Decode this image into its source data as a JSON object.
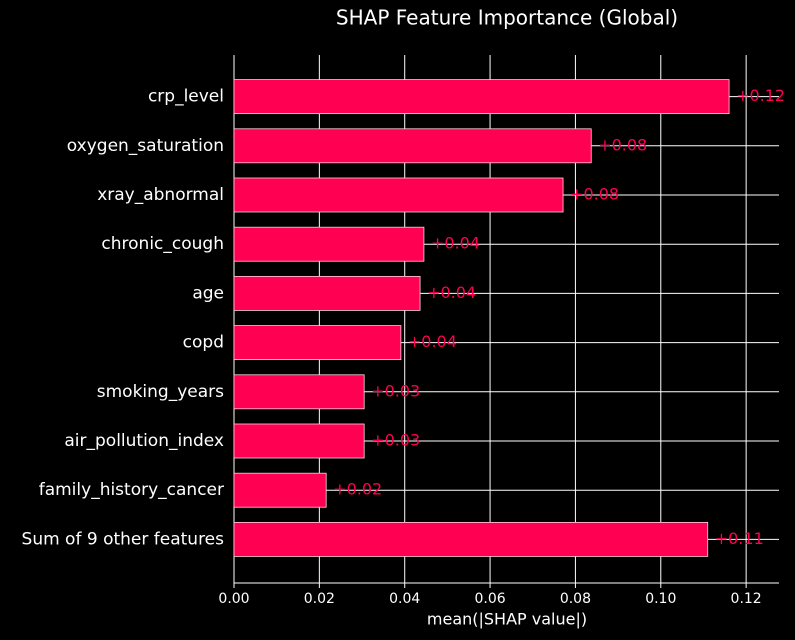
{
  "chart_data": {
    "type": "barh",
    "title": "SHAP Feature Importance (Global)",
    "x_label": "mean(|SHAP value|)",
    "categories": [
      "crp_level",
      "oxygen_saturation",
      "xray_abnormal",
      "chronic_cough",
      "age",
      "copd",
      "smoking_years",
      "air_pollution_index",
      "family_history_cancer",
      "Sum of 9 other features"
    ],
    "values": [
      0.116,
      0.0837,
      0.0771,
      0.0445,
      0.0436,
      0.0391,
      0.0305,
      0.0305,
      0.0216,
      0.111
    ],
    "value_labels": [
      "+0.12",
      "+0.08",
      "+0.08",
      "+0.04",
      "+0.04",
      "+0.04",
      "+0.03",
      "+0.03",
      "+0.02",
      "+0.11"
    ],
    "color": "#ff0052",
    "xlim": [
      0,
      0.1277
    ],
    "xticks": [
      {
        "value": 0,
        "label": "0.00"
      },
      0.02,
      0.04,
      0.06,
      0.08,
      {
        "value": 0.1,
        "label": "0.10"
      },
      0.12
    ],
    "grid": true
  }
}
